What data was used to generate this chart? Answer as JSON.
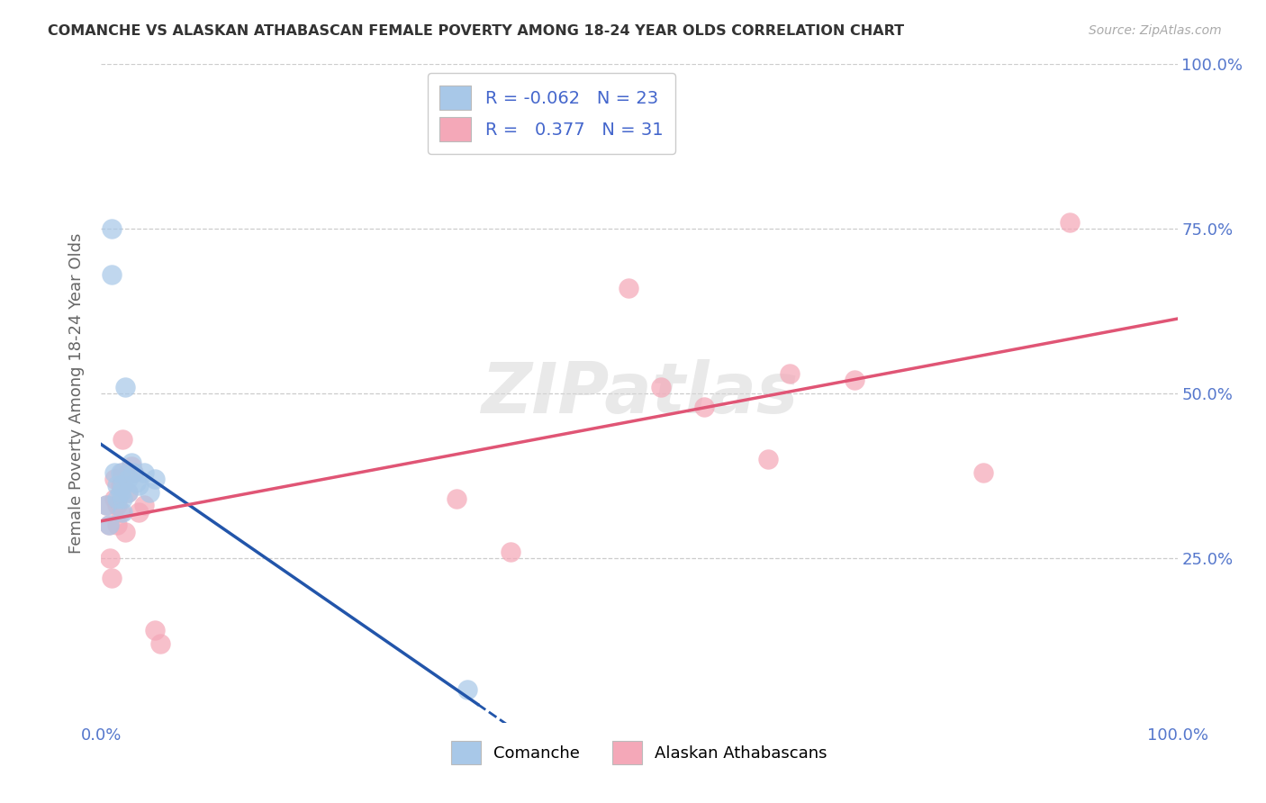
{
  "title": "COMANCHE VS ALASKAN ATHABASCAN FEMALE POVERTY AMONG 18-24 YEAR OLDS CORRELATION CHART",
  "source": "Source: ZipAtlas.com",
  "ylabel": "Female Poverty Among 18-24 Year Olds",
  "legend_bottom": [
    "Comanche",
    "Alaskan Athabascans"
  ],
  "comanche_R": "-0.062",
  "comanche_N": "23",
  "athabascan_R": "0.377",
  "athabascan_N": "31",
  "comanche_color": "#a8c8e8",
  "athabascan_color": "#f4a8b8",
  "comanche_line_color": "#2255aa",
  "athabascan_line_color": "#e05575",
  "watermark_text": "ZIPatlas",
  "background_color": "#ffffff",
  "comanche_x": [
    0.005,
    0.007,
    0.01,
    0.01,
    0.012,
    0.015,
    0.015,
    0.018,
    0.018,
    0.02,
    0.02,
    0.02,
    0.022,
    0.025,
    0.025,
    0.028,
    0.03,
    0.032,
    0.035,
    0.04,
    0.045,
    0.05,
    0.34
  ],
  "comanche_y": [
    0.33,
    0.3,
    0.75,
    0.68,
    0.38,
    0.36,
    0.34,
    0.38,
    0.35,
    0.36,
    0.34,
    0.32,
    0.51,
    0.37,
    0.35,
    0.395,
    0.38,
    0.365,
    0.36,
    0.38,
    0.35,
    0.37,
    0.05
  ],
  "athabascan_x": [
    0.005,
    0.007,
    0.008,
    0.01,
    0.012,
    0.012,
    0.015,
    0.015,
    0.018,
    0.018,
    0.02,
    0.02,
    0.022,
    0.025,
    0.025,
    0.028,
    0.03,
    0.035,
    0.04,
    0.05,
    0.055,
    0.33,
    0.38,
    0.49,
    0.52,
    0.56,
    0.62,
    0.64,
    0.7,
    0.82,
    0.9
  ],
  "athabascan_y": [
    0.33,
    0.3,
    0.25,
    0.22,
    0.37,
    0.34,
    0.33,
    0.3,
    0.36,
    0.32,
    0.43,
    0.38,
    0.29,
    0.38,
    0.35,
    0.39,
    0.38,
    0.32,
    0.33,
    0.14,
    0.12,
    0.34,
    0.26,
    0.66,
    0.51,
    0.48,
    0.4,
    0.53,
    0.52,
    0.38,
    0.76
  ],
  "xlim": [
    0,
    1
  ],
  "ylim": [
    0,
    1
  ],
  "x_ticks": [
    0,
    1
  ],
  "x_ticklabels": [
    "0.0%",
    "100.0%"
  ],
  "y_ticks": [
    0,
    0.25,
    0.5,
    0.75,
    1.0
  ],
  "y_ticklabels_right": [
    "",
    "25.0%",
    "50.0%",
    "75.0%",
    "100.0%"
  ],
  "grid_ticks": [
    0.25,
    0.5,
    0.75,
    1.0
  ]
}
